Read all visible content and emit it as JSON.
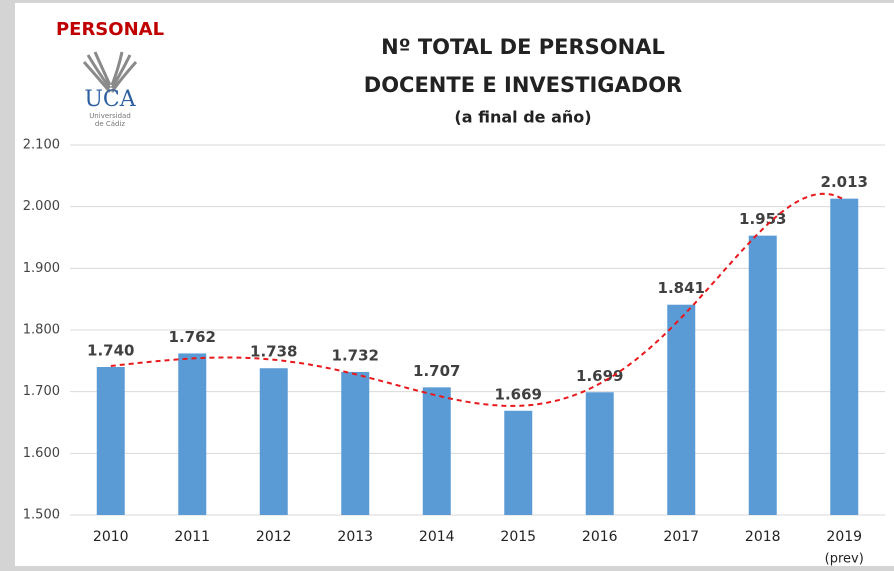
{
  "header": {
    "section": "PERSONAL",
    "logo_name": "UCA",
    "logo_lines": [
      "Universidad",
      "de Cádiz"
    ]
  },
  "chart_data": {
    "type": "bar",
    "title": [
      "Nº TOTAL DE PERSONAL",
      "DOCENTE E INVESTIGADOR"
    ],
    "subtitle": "(a final de año)",
    "categories": [
      "2010",
      "2011",
      "2012",
      "2013",
      "2014",
      "2015",
      "2016",
      "2017",
      "2018",
      "2019"
    ],
    "category_note": "(prev)",
    "values": [
      1740,
      1762,
      1738,
      1732,
      1707,
      1669,
      1699,
      1841,
      1953,
      2013
    ],
    "value_labels": [
      "1.740",
      "1.762",
      "1.738",
      "1.732",
      "1.707",
      "1.669",
      "1.699",
      "1.841",
      "1.953",
      "2.013"
    ],
    "color": "#5b9bd5",
    "ylim": [
      1500,
      2100
    ],
    "yticks": [
      {
        "value": 1500,
        "label": "1.500"
      },
      {
        "value": 1600,
        "label": "1.600"
      },
      {
        "value": 1700,
        "label": "1.700"
      },
      {
        "value": 1800,
        "label": "1.800"
      },
      {
        "value": 1900,
        "label": "1.900"
      },
      {
        "value": 2000,
        "label": "2.000"
      },
      {
        "value": 2100,
        "label": "2.100"
      }
    ],
    "grid": true,
    "trendline": {
      "type": "polynomial",
      "order": 6,
      "color": "#e8191c"
    }
  }
}
